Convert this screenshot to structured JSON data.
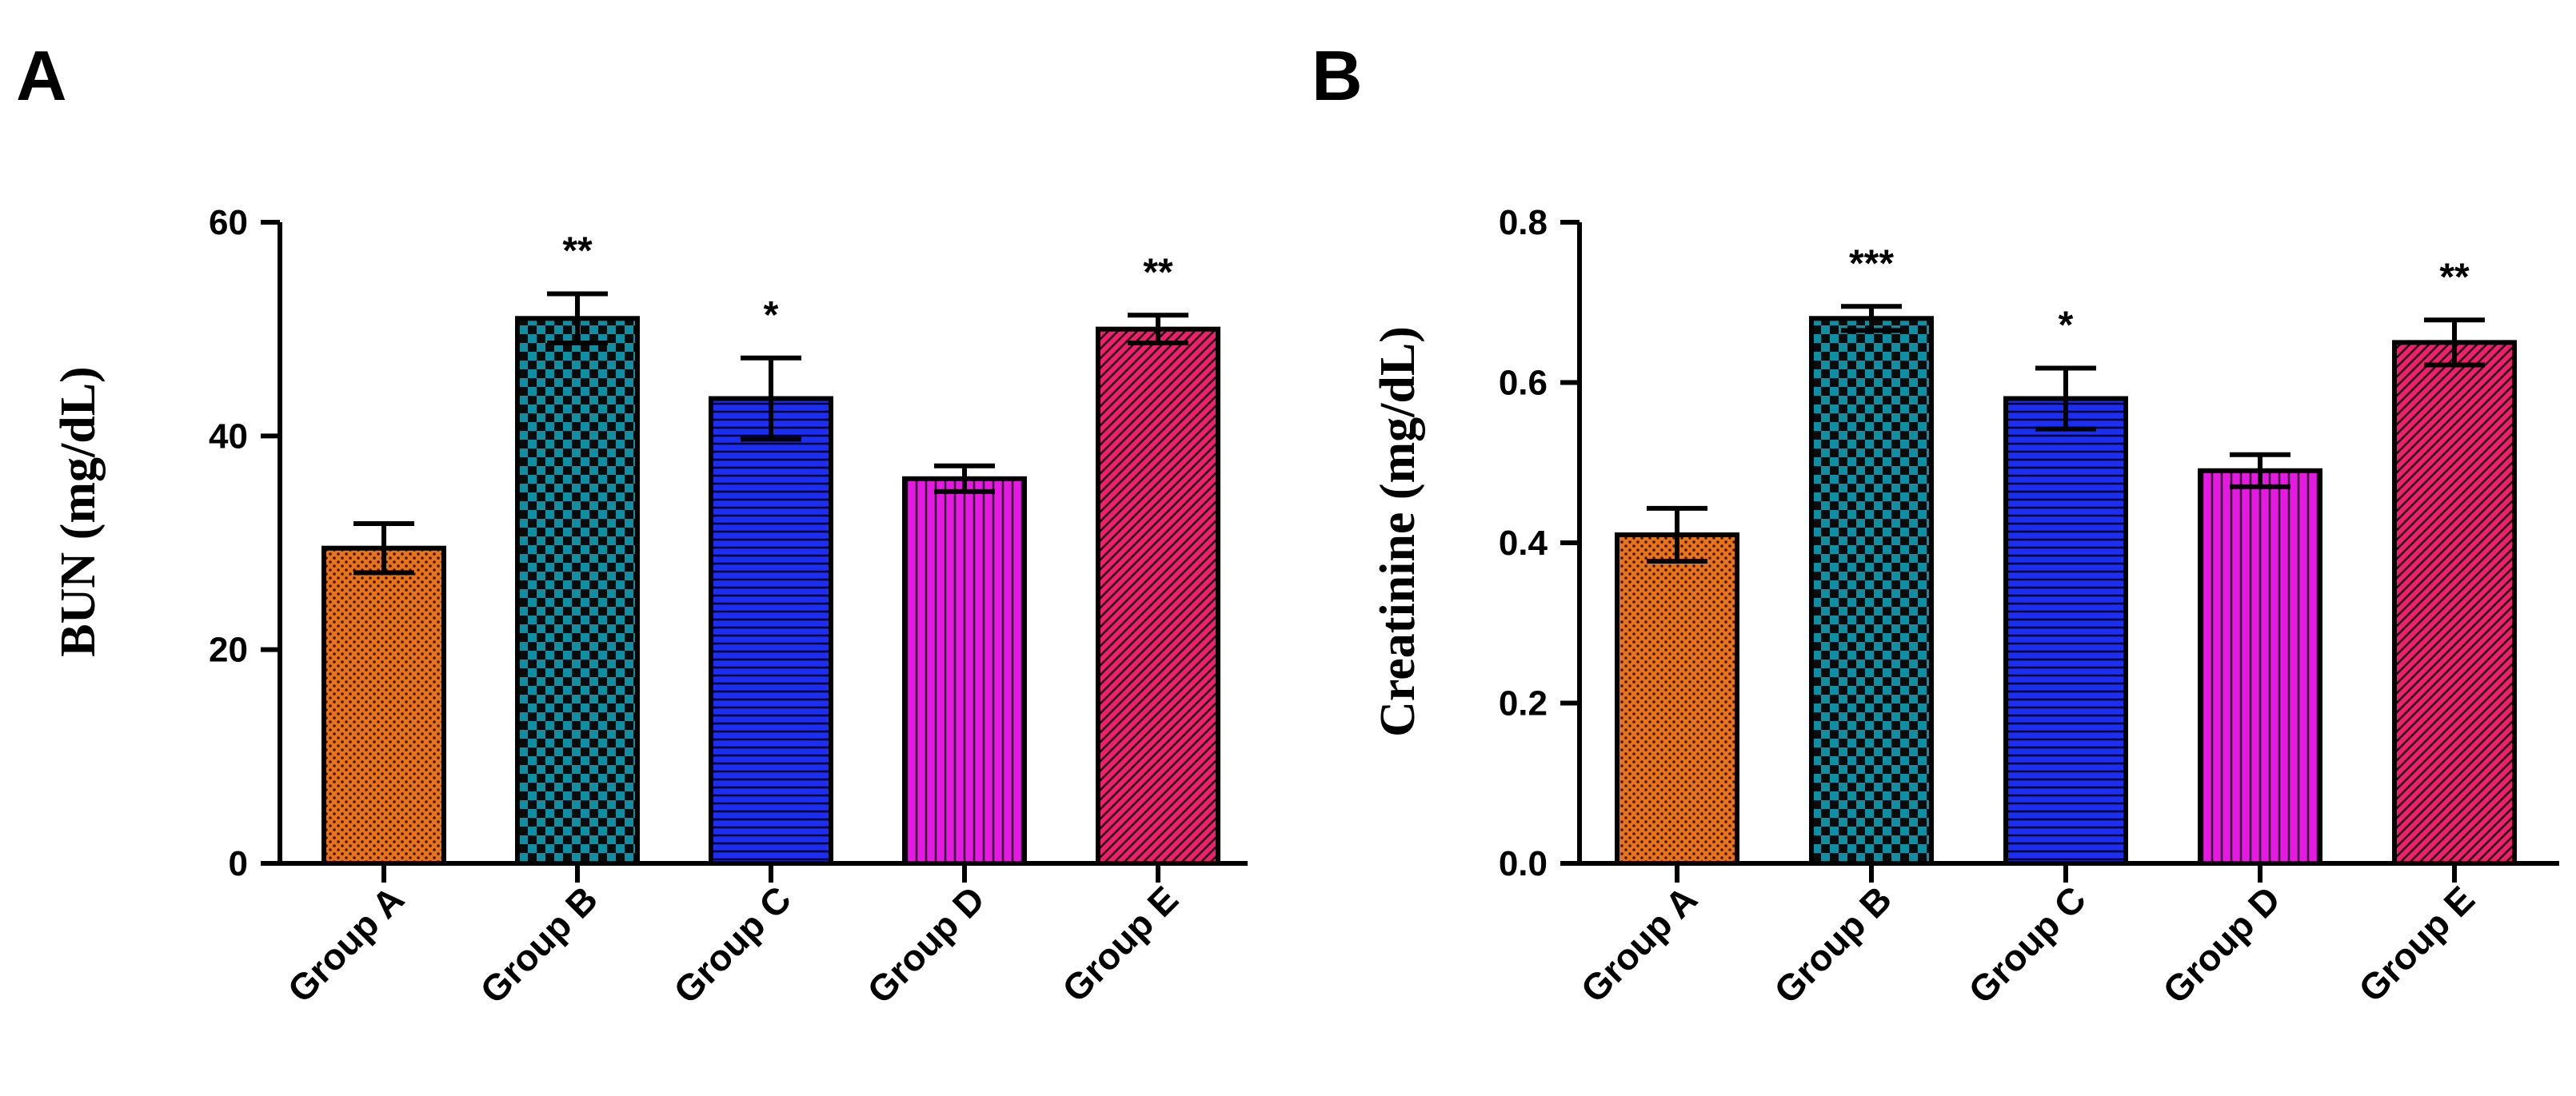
{
  "colors": {
    "group_a": "#e8731a",
    "group_b": "#0e8fa3",
    "group_c": "#1c2ef2",
    "group_d": "#e619e3",
    "group_e": "#ee1f6d",
    "axis": "#000000"
  },
  "chart_data": [
    {
      "panel": "A",
      "type": "bar",
      "title": "",
      "xlabel": "",
      "ylabel": "BUN (mg/dL)",
      "categories": [
        "Group A",
        "Group B",
        "Group C",
        "Group D",
        "Group E"
      ],
      "values": [
        29.5,
        51,
        43.5,
        36,
        50
      ],
      "errors": [
        2.3,
        2.3,
        3.8,
        1.2,
        1.3
      ],
      "significance": [
        "",
        "**",
        "*",
        "",
        "**"
      ],
      "patterns": [
        "dots",
        "checker",
        "hlines",
        "vlines",
        "diagonal"
      ],
      "ylim": [
        0,
        60
      ],
      "yticks": [
        0,
        20,
        40,
        60
      ],
      "ytick_labels": [
        "0",
        "20",
        "40",
        "60"
      ],
      "grid": false
    },
    {
      "panel": "B",
      "type": "bar",
      "title": "",
      "xlabel": "",
      "ylabel": "Creatinine (mg/dL)",
      "categories": [
        "Group A",
        "Group B",
        "Group C",
        "Group D",
        "Group E"
      ],
      "values": [
        0.41,
        0.68,
        0.58,
        0.49,
        0.65
      ],
      "errors": [
        0.033,
        0.015,
        0.038,
        0.02,
        0.028
      ],
      "significance": [
        "",
        "***",
        "*",
        "",
        "**"
      ],
      "patterns": [
        "dots",
        "checker",
        "hlines",
        "vlines",
        "diagonal"
      ],
      "ylim": [
        0,
        0.8
      ],
      "yticks": [
        0,
        0.2,
        0.4,
        0.6,
        0.8
      ],
      "ytick_labels": [
        "0.0",
        "0.2",
        "0.4",
        "0.6",
        "0.8"
      ],
      "grid": false
    }
  ]
}
